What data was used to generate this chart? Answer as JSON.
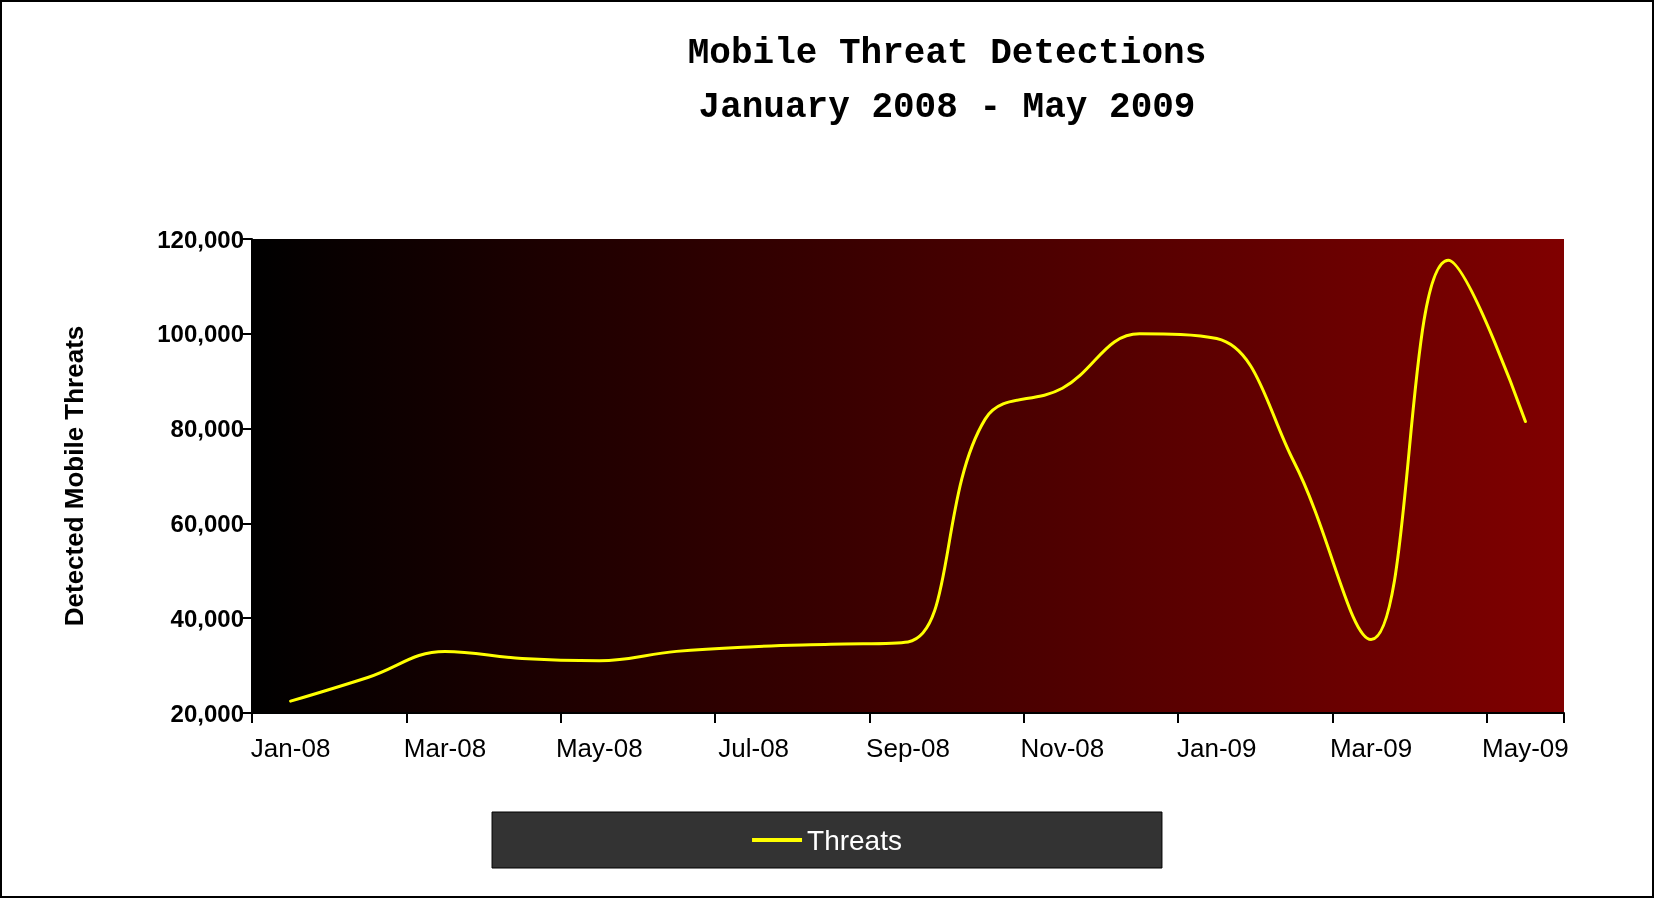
{
  "chart_data": {
    "type": "line",
    "title": "Mobile Threat Detections",
    "subtitle": "January 2008 - May 2009",
    "ylabel": "Detected Mobile Threats",
    "categories": [
      "Jan-08",
      null,
      "Mar-08",
      null,
      "May-08",
      null,
      "Jul-08",
      null,
      "Sep-08",
      null,
      "Nov-08",
      null,
      "Jan-09",
      null,
      "Mar-09",
      null,
      "May-09"
    ],
    "series": [
      {
        "name": "Threats",
        "color": "#ffff00",
        "values": [
          22500,
          27500,
          33000,
          31500,
          31000,
          33000,
          34000,
          34500,
          35000,
          82000,
          88500,
          100000,
          99000,
          73000,
          35500,
          115500,
          81500
        ]
      }
    ],
    "ylim": [
      20000,
      120000
    ],
    "yticks": [
      {
        "value": 20000,
        "label": "20,000"
      },
      {
        "value": 40000,
        "label": "40,000"
      },
      {
        "value": 60000,
        "label": "60,000"
      },
      {
        "value": 80000,
        "label": "80,000"
      },
      {
        "value": 100000,
        "label": "100,000"
      },
      {
        "value": 120000,
        "label": "120,000"
      }
    ],
    "grid": false,
    "legend": "bottom",
    "marker": "none",
    "line_style": "solid"
  }
}
